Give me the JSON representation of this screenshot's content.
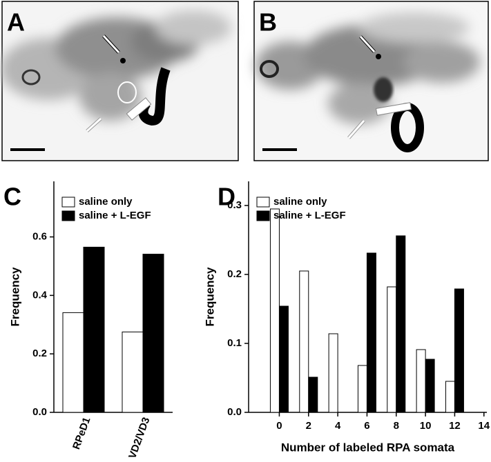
{
  "panel_labels": [
    "A",
    "B",
    "C",
    "D"
  ],
  "chart_data": [
    {
      "type": "bar",
      "categories": [
        "RPeD1",
        "VD2/VD3"
      ],
      "series": [
        {
          "name": "saline only",
          "color": "#ffffff",
          "values": [
            0.341,
            0.275
          ]
        },
        {
          "name": "saline + L-EGF",
          "color": "#000000",
          "values": [
            0.565,
            0.541
          ]
        }
      ],
      "ylabel": "Frequency",
      "ylim": [
        0,
        0.79
      ],
      "yticks": [
        {
          "value": 0,
          "label": "0.0"
        },
        0.2,
        0.4,
        0.6
      ],
      "legend": "upper left"
    },
    {
      "type": "bar",
      "x": [
        0,
        2,
        4,
        6,
        8,
        10,
        12
      ],
      "series": [
        {
          "name": "saline only",
          "color": "#ffffff",
          "values": [
            0.295,
            0.205,
            0.114,
            0.068,
            0.182,
            0.091,
            0.045
          ]
        },
        {
          "name": "saline + L-EGF",
          "color": "#000000",
          "values": [
            0.154,
            0.051,
            0,
            0.231,
            0.256,
            0.077,
            0.179
          ]
        }
      ],
      "xlabel": "Number of labeled RPA somata",
      "ylabel": "Frequency",
      "xlim": [
        -2.1,
        14.2
      ],
      "ylim": [
        0,
        0.335
      ],
      "xticks": [
        0,
        2,
        4,
        6,
        8,
        10,
        12,
        14
      ],
      "yticks": [
        {
          "value": 0,
          "label": "0.0"
        },
        0.1,
        0.2,
        0.3
      ],
      "legend": "upper left"
    }
  ]
}
